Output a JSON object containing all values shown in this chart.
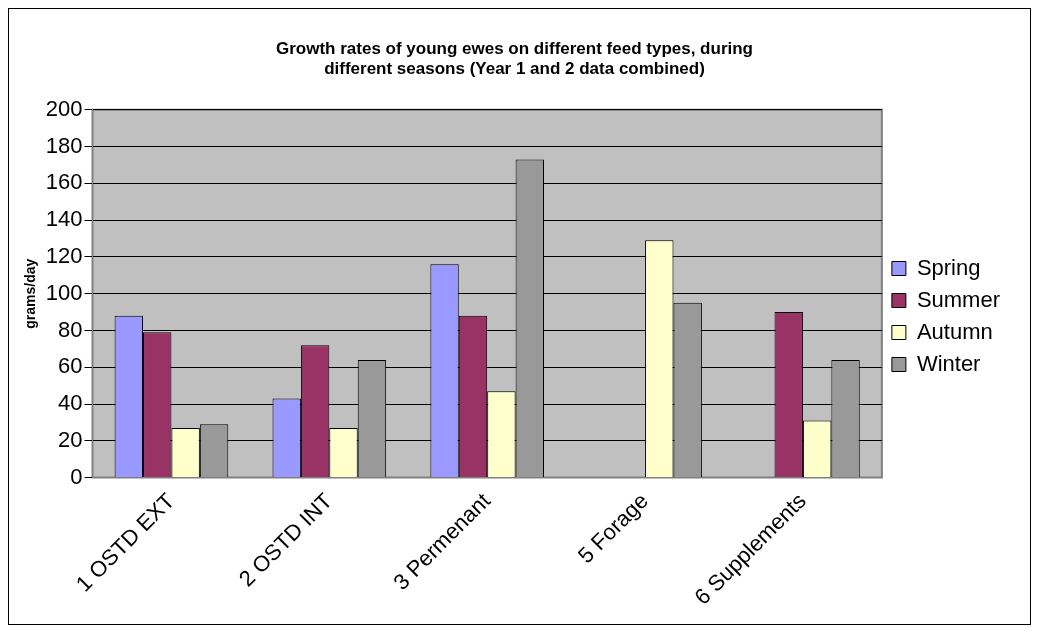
{
  "chart_data": {
    "type": "bar",
    "title": "Growth rates of young ewes on different feed types, during different seasons (Year 1 and 2 data combined)",
    "ylabel": "grams/day",
    "categories": [
      "1 OSTD EXT",
      "2 OSTD INT",
      "3 Permenant",
      "5 Forage",
      "6 Supplements"
    ],
    "series": [
      {
        "name": "Spring",
        "color": "#9999ff",
        "values": [
          88,
          43,
          116,
          null,
          null
        ]
      },
      {
        "name": "Summer",
        "color": "#993366",
        "values": [
          79,
          72,
          88,
          null,
          90
        ]
      },
      {
        "name": "Autumn",
        "color": "#ffffcc",
        "values": [
          27,
          27,
          47,
          129,
          31
        ]
      },
      {
        "name": "Winter",
        "color": "#999999",
        "values": [
          29,
          64,
          173,
          95,
          64
        ]
      }
    ],
    "ylim": [
      0,
      200
    ],
    "yticks": [
      0,
      20,
      40,
      60,
      80,
      100,
      120,
      140,
      160,
      180,
      200
    ],
    "grid": "y",
    "legend": "right"
  }
}
